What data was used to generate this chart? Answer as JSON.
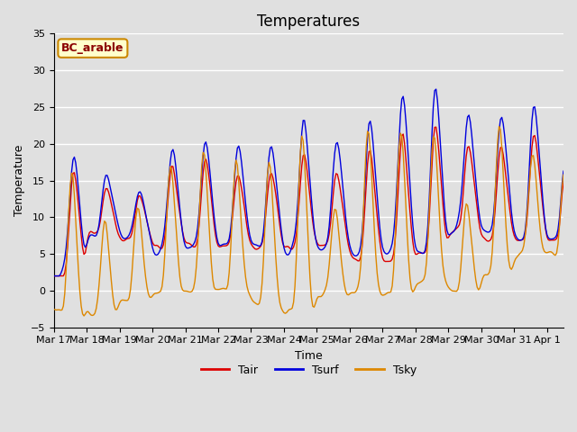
{
  "title": "Temperatures",
  "xlabel": "Time",
  "ylabel": "Temperature",
  "legend_label": "BC_arable",
  "series_labels": [
    "Tair",
    "Tsurf",
    "Tsky"
  ],
  "series_colors": [
    "#dd0000",
    "#0000dd",
    "#dd8800"
  ],
  "ylim": [
    -5,
    35
  ],
  "yticks": [
    -5,
    0,
    5,
    10,
    15,
    20,
    25,
    30,
    35
  ],
  "bg_color": "#e0e0e0",
  "plot_bg_color": "#e0e0e0",
  "grid_color": "white",
  "title_fontsize": 12,
  "axis_fontsize": 9,
  "tick_fontsize": 8,
  "legend_box_facecolor": "#ffffcc",
  "legend_box_edgecolor": "#cc8800",
  "legend_label_color": "#8b0000"
}
